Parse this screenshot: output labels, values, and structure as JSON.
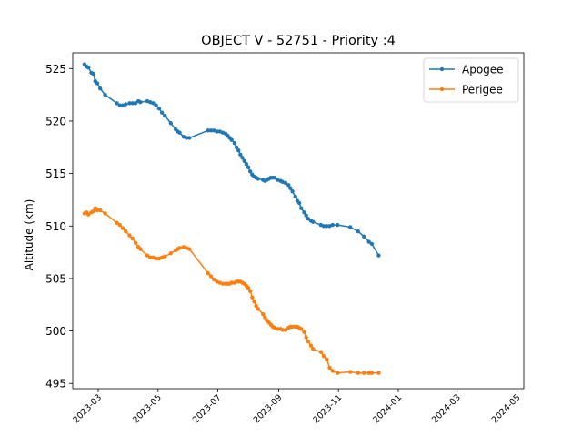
{
  "chart_data": {
    "type": "line",
    "title": "OBJECT V - 52751 - Priority :4",
    "xlabel": "",
    "ylabel": "Altitude (km)",
    "xlim": [
      "2023-02-03",
      "2024-05-08"
    ],
    "ylim": [
      494.5,
      526.5
    ],
    "x_ticks": [
      "2023-03",
      "2023-05",
      "2023-07",
      "2023-09",
      "2023-11",
      "2024-01",
      "2024-03",
      "2024-05"
    ],
    "y_ticks": [
      495,
      500,
      505,
      510,
      515,
      520,
      525
    ],
    "grid": false,
    "legend_position": "top-right",
    "series": [
      {
        "name": "Apogee",
        "color": "#1f77b4",
        "points": [
          [
            "2023-02-15",
            525.4
          ],
          [
            "2023-02-17",
            525.2
          ],
          [
            "2023-02-19",
            525.1
          ],
          [
            "2023-02-22",
            524.6
          ],
          [
            "2023-02-24",
            524.5
          ],
          [
            "2023-02-26",
            523.8
          ],
          [
            "2023-02-28",
            523.6
          ],
          [
            "2023-03-03",
            523.1
          ],
          [
            "2023-03-08",
            522.5
          ],
          [
            "2023-03-20",
            521.7
          ],
          [
            "2023-03-23",
            521.5
          ],
          [
            "2023-03-26",
            521.5
          ],
          [
            "2023-03-29",
            521.6
          ],
          [
            "2023-04-02",
            521.7
          ],
          [
            "2023-04-05",
            521.7
          ],
          [
            "2023-04-08",
            521.7
          ],
          [
            "2023-04-11",
            521.9
          ],
          [
            "2023-04-13",
            521.8
          ],
          [
            "2023-04-20",
            521.9
          ],
          [
            "2023-04-23",
            521.8
          ],
          [
            "2023-04-26",
            521.7
          ],
          [
            "2023-04-29",
            521.5
          ],
          [
            "2023-05-02",
            521.2
          ],
          [
            "2023-05-05",
            520.8
          ],
          [
            "2023-05-08",
            520.5
          ],
          [
            "2023-05-14",
            519.8
          ],
          [
            "2023-05-19",
            519.2
          ],
          [
            "2023-05-21",
            519.0
          ],
          [
            "2023-05-23",
            518.9
          ],
          [
            "2023-05-27",
            518.5
          ],
          [
            "2023-05-30",
            518.4
          ],
          [
            "2023-06-02",
            518.4
          ],
          [
            "2023-06-21",
            519.1
          ],
          [
            "2023-06-24",
            519.1
          ],
          [
            "2023-06-27",
            519.1
          ],
          [
            "2023-06-30",
            519.0
          ],
          [
            "2023-07-03",
            519.0
          ],
          [
            "2023-07-06",
            518.9
          ],
          [
            "2023-07-09",
            518.8
          ],
          [
            "2023-07-11",
            518.6
          ],
          [
            "2023-07-13",
            518.4
          ],
          [
            "2023-07-15",
            518.2
          ],
          [
            "2023-07-18",
            517.9
          ],
          [
            "2023-07-20",
            517.5
          ],
          [
            "2023-07-22",
            517.2
          ],
          [
            "2023-07-24",
            516.8
          ],
          [
            "2023-07-26",
            516.5
          ],
          [
            "2023-07-28",
            516.2
          ],
          [
            "2023-07-30",
            515.9
          ],
          [
            "2023-08-01",
            515.6
          ],
          [
            "2023-08-03",
            515.2
          ],
          [
            "2023-08-05",
            514.9
          ],
          [
            "2023-08-07",
            514.7
          ],
          [
            "2023-08-09",
            514.6
          ],
          [
            "2023-08-11",
            514.5
          ],
          [
            "2023-08-16",
            514.4
          ],
          [
            "2023-08-18",
            514.3
          ],
          [
            "2023-08-20",
            514.4
          ],
          [
            "2023-08-22",
            514.5
          ],
          [
            "2023-08-24",
            514.6
          ],
          [
            "2023-08-26",
            514.6
          ],
          [
            "2023-08-28",
            514.6
          ],
          [
            "2023-08-31",
            514.4
          ],
          [
            "2023-09-03",
            514.3
          ],
          [
            "2023-09-05",
            514.2
          ],
          [
            "2023-09-08",
            514.1
          ],
          [
            "2023-09-11",
            513.9
          ],
          [
            "2023-09-13",
            513.6
          ],
          [
            "2023-09-15",
            513.3
          ],
          [
            "2023-09-18",
            512.8
          ],
          [
            "2023-09-20",
            512.4
          ],
          [
            "2023-09-22",
            512.2
          ],
          [
            "2023-09-24",
            511.7
          ],
          [
            "2023-09-27",
            511.3
          ],
          [
            "2023-09-29",
            511.0
          ],
          [
            "2023-10-01",
            510.7
          ],
          [
            "2023-10-04",
            510.5
          ],
          [
            "2023-10-06",
            510.4
          ],
          [
            "2023-10-14",
            510.1
          ],
          [
            "2023-10-17",
            510.0
          ],
          [
            "2023-10-20",
            510.0
          ],
          [
            "2023-10-23",
            510.0
          ],
          [
            "2023-10-26",
            510.1
          ],
          [
            "2023-10-31",
            510.1
          ],
          [
            "2023-11-13",
            509.9
          ],
          [
            "2023-11-21",
            509.5
          ],
          [
            "2023-11-27",
            509.0
          ],
          [
            "2023-12-02",
            508.5
          ],
          [
            "2023-12-05",
            508.3
          ],
          [
            "2023-12-12",
            507.2
          ]
        ]
      },
      {
        "name": "Perigee",
        "color": "#ff7f0e",
        "points": [
          [
            "2023-02-15",
            511.2
          ],
          [
            "2023-02-17",
            511.3
          ],
          [
            "2023-02-19",
            511.1
          ],
          [
            "2023-02-22",
            511.3
          ],
          [
            "2023-02-24",
            511.4
          ],
          [
            "2023-02-26",
            511.7
          ],
          [
            "2023-02-28",
            511.5
          ],
          [
            "2023-03-03",
            511.5
          ],
          [
            "2023-03-08",
            511.2
          ],
          [
            "2023-03-20",
            510.3
          ],
          [
            "2023-03-23",
            510.1
          ],
          [
            "2023-03-26",
            509.8
          ],
          [
            "2023-03-29",
            509.5
          ],
          [
            "2023-04-02",
            509.1
          ],
          [
            "2023-04-05",
            508.8
          ],
          [
            "2023-04-08",
            508.4
          ],
          [
            "2023-04-11",
            508.0
          ],
          [
            "2023-04-13",
            507.8
          ],
          [
            "2023-04-20",
            507.2
          ],
          [
            "2023-04-23",
            507.0
          ],
          [
            "2023-04-26",
            507.0
          ],
          [
            "2023-04-29",
            506.9
          ],
          [
            "2023-05-02",
            506.9
          ],
          [
            "2023-05-05",
            507.0
          ],
          [
            "2023-05-08",
            507.1
          ],
          [
            "2023-05-14",
            507.4
          ],
          [
            "2023-05-19",
            507.7
          ],
          [
            "2023-05-21",
            507.8
          ],
          [
            "2023-05-23",
            507.9
          ],
          [
            "2023-05-27",
            508.0
          ],
          [
            "2023-05-30",
            507.9
          ],
          [
            "2023-06-02",
            507.8
          ],
          [
            "2023-06-21",
            505.5
          ],
          [
            "2023-06-24",
            505.2
          ],
          [
            "2023-06-27",
            504.9
          ],
          [
            "2023-06-30",
            504.7
          ],
          [
            "2023-07-03",
            504.6
          ],
          [
            "2023-07-06",
            504.5
          ],
          [
            "2023-07-09",
            504.5
          ],
          [
            "2023-07-11",
            504.5
          ],
          [
            "2023-07-13",
            504.5
          ],
          [
            "2023-07-15",
            504.6
          ],
          [
            "2023-07-18",
            504.6
          ],
          [
            "2023-07-20",
            504.7
          ],
          [
            "2023-07-22",
            504.7
          ],
          [
            "2023-07-24",
            504.7
          ],
          [
            "2023-07-26",
            504.6
          ],
          [
            "2023-07-28",
            504.5
          ],
          [
            "2023-07-30",
            504.3
          ],
          [
            "2023-08-01",
            504.1
          ],
          [
            "2023-08-03",
            503.8
          ],
          [
            "2023-08-05",
            503.2
          ],
          [
            "2023-08-07",
            502.8
          ],
          [
            "2023-08-09",
            502.4
          ],
          [
            "2023-08-11",
            502.1
          ],
          [
            "2023-08-16",
            501.6
          ],
          [
            "2023-08-18",
            501.3
          ],
          [
            "2023-08-20",
            501.0
          ],
          [
            "2023-08-22",
            500.8
          ],
          [
            "2023-08-24",
            500.6
          ],
          [
            "2023-08-26",
            500.4
          ],
          [
            "2023-08-28",
            500.3
          ],
          [
            "2023-08-31",
            500.2
          ],
          [
            "2023-09-03",
            500.2
          ],
          [
            "2023-09-05",
            500.1
          ],
          [
            "2023-09-08",
            500.1
          ],
          [
            "2023-09-11",
            500.3
          ],
          [
            "2023-09-13",
            500.4
          ],
          [
            "2023-09-15",
            500.4
          ],
          [
            "2023-09-18",
            500.4
          ],
          [
            "2023-09-20",
            500.4
          ],
          [
            "2023-09-22",
            500.3
          ],
          [
            "2023-09-24",
            500.2
          ],
          [
            "2023-09-27",
            499.9
          ],
          [
            "2023-09-29",
            499.4
          ],
          [
            "2023-10-01",
            499.0
          ],
          [
            "2023-10-04",
            498.6
          ],
          [
            "2023-10-06",
            498.3
          ],
          [
            "2023-10-14",
            498.0
          ],
          [
            "2023-10-17",
            497.6
          ],
          [
            "2023-10-20",
            497.3
          ],
          [
            "2023-10-23",
            496.5
          ],
          [
            "2023-10-26",
            496.2
          ],
          [
            "2023-10-31",
            496.0
          ],
          [
            "2023-11-13",
            496.1
          ],
          [
            "2023-11-21",
            496.0
          ],
          [
            "2023-11-27",
            496.0
          ],
          [
            "2023-12-02",
            496.0
          ],
          [
            "2023-12-05",
            496.0
          ],
          [
            "2023-12-12",
            496.0
          ]
        ]
      }
    ]
  }
}
